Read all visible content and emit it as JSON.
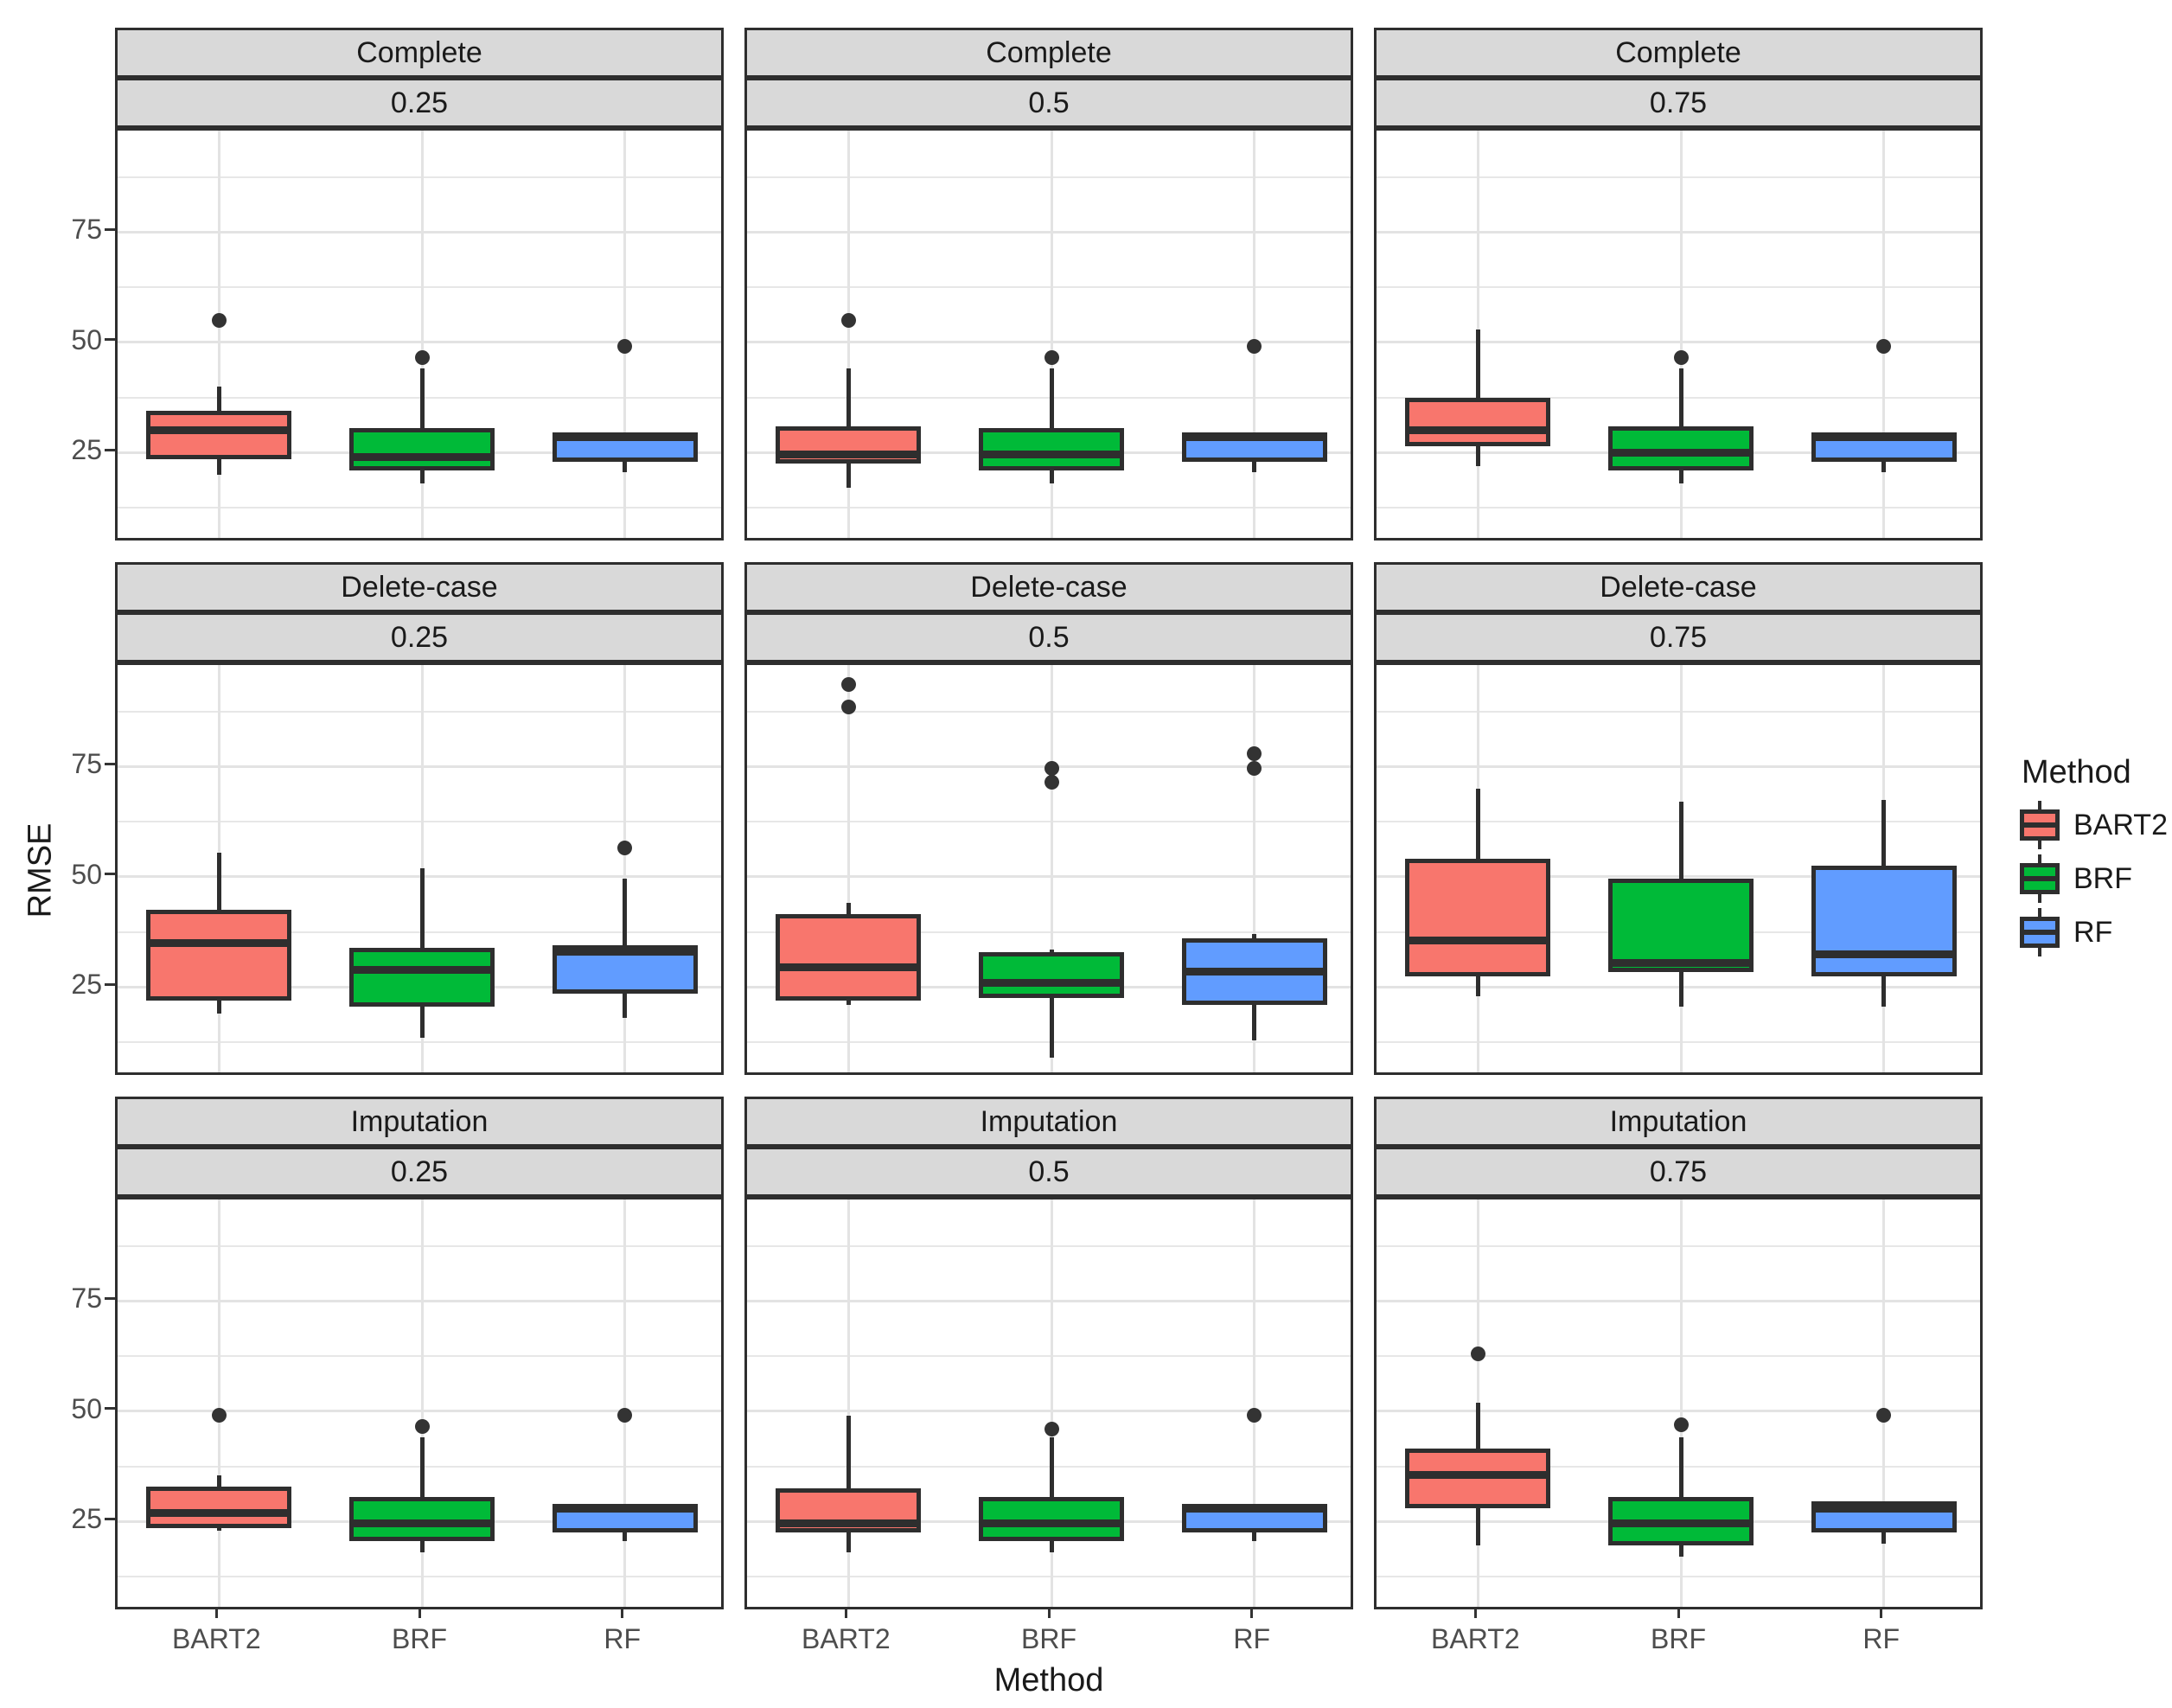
{
  "figure": {
    "y_axis_title": "RMSE",
    "x_axis_title": "Method"
  },
  "legend": {
    "title": "Method",
    "items": [
      {
        "label": "BART2",
        "color": "#F8766D"
      },
      {
        "label": "BRF",
        "color": "#00BA38"
      },
      {
        "label": "RF",
        "color": "#619CFF"
      }
    ]
  },
  "colors": {
    "bart2": "#F8766D",
    "brf": "#00BA38",
    "rf": "#619CFF",
    "box_border": "#2E2E2E",
    "strip_bg": "#D9D9D9",
    "grid": "#E7E7E7",
    "tick_text": "#4D4D4D",
    "text": "#1A1A1A",
    "panel_bg": "#FFFFFF"
  },
  "chart_data": {
    "type": "boxplot",
    "title": "",
    "xlabel": "Method",
    "ylabel": "RMSE",
    "legend_position": "right",
    "grid": "on",
    "facet_rows": [
      "Complete",
      "Delete-case",
      "Imputation"
    ],
    "facet_cols": [
      "0.25",
      "0.5",
      "0.75"
    ],
    "methods": [
      "BART2",
      "BRF",
      "RF"
    ],
    "y_ticks": [
      25,
      50,
      75
    ],
    "y_minor_gridlines": [
      12.5,
      37.5,
      62.5,
      87.5
    ],
    "y_domain": [
      4.5,
      98
    ],
    "panels": [
      {
        "facet_row": "Complete",
        "facet_col": "0.25",
        "boxes": [
          {
            "method": "BART2",
            "whisker_low": 20,
            "q1": 23.5,
            "median": 30,
            "q3": 34.5,
            "whisker_high": 40,
            "outliers": [
              55
            ]
          },
          {
            "method": "BRF",
            "whisker_low": 18,
            "q1": 21,
            "median": 24,
            "q3": 30.5,
            "whisker_high": 44,
            "outliers": [
              46.5
            ]
          },
          {
            "method": "RF",
            "whisker_low": 20.5,
            "q1": 23,
            "median": 28.5,
            "q3": 29.5,
            "whisker_high": 29.5,
            "outliers": [
              49
            ]
          }
        ]
      },
      {
        "facet_row": "Complete",
        "facet_col": "0.5",
        "boxes": [
          {
            "method": "BART2",
            "whisker_low": 17,
            "q1": 22.5,
            "median": 24.5,
            "q3": 31,
            "whisker_high": 44,
            "outliers": [
              55
            ]
          },
          {
            "method": "BRF",
            "whisker_low": 18,
            "q1": 21,
            "median": 24.5,
            "q3": 30.5,
            "whisker_high": 44,
            "outliers": [
              46.5
            ]
          },
          {
            "method": "RF",
            "whisker_low": 20.5,
            "q1": 23,
            "median": 28.5,
            "q3": 29.5,
            "whisker_high": 29.5,
            "outliers": [
              49
            ]
          }
        ]
      },
      {
        "facet_row": "Complete",
        "facet_col": "0.75",
        "boxes": [
          {
            "method": "BART2",
            "whisker_low": 22,
            "q1": 26.5,
            "median": 30,
            "q3": 37.5,
            "whisker_high": 53,
            "outliers": []
          },
          {
            "method": "BRF",
            "whisker_low": 18,
            "q1": 21,
            "median": 25,
            "q3": 31,
            "whisker_high": 44,
            "outliers": [
              46.5
            ]
          },
          {
            "method": "RF",
            "whisker_low": 20.5,
            "q1": 23,
            "median": 28.5,
            "q3": 29.5,
            "whisker_high": 29.5,
            "outliers": [
              49
            ]
          }
        ]
      },
      {
        "facet_row": "Delete-case",
        "facet_col": "0.25",
        "boxes": [
          {
            "method": "BART2",
            "whisker_low": 19,
            "q1": 22,
            "median": 35,
            "q3": 42.5,
            "whisker_high": 55.5,
            "outliers": []
          },
          {
            "method": "BRF",
            "whisker_low": 13.5,
            "q1": 20.5,
            "median": 29,
            "q3": 34,
            "whisker_high": 52,
            "outliers": []
          },
          {
            "method": "RF",
            "whisker_low": 18,
            "q1": 23.5,
            "median": 33,
            "q3": 34.5,
            "whisker_high": 49.5,
            "outliers": [
              56.5
            ]
          }
        ]
      },
      {
        "facet_row": "Delete-case",
        "facet_col": "0.5",
        "boxes": [
          {
            "method": "BART2",
            "whisker_low": 21,
            "q1": 22,
            "median": 29.5,
            "q3": 41.5,
            "whisker_high": 44,
            "outliers": [
              88.5,
              93.5
            ]
          },
          {
            "method": "BRF",
            "whisker_low": 9,
            "q1": 22.5,
            "median": 26,
            "q3": 33,
            "whisker_high": 33.5,
            "outliers": [
              71.5,
              74.5
            ]
          },
          {
            "method": "RF",
            "whisker_low": 13,
            "q1": 21,
            "median": 28.5,
            "q3": 36,
            "whisker_high": 37,
            "outliers": [
              74.5,
              78
            ]
          }
        ]
      },
      {
        "facet_row": "Delete-case",
        "facet_col": "0.75",
        "boxes": [
          {
            "method": "BART2",
            "whisker_low": 23,
            "q1": 27.5,
            "median": 35.5,
            "q3": 54,
            "whisker_high": 70,
            "outliers": []
          },
          {
            "method": "BRF",
            "whisker_low": 20.5,
            "q1": 28.5,
            "median": 30.5,
            "q3": 49.5,
            "whisker_high": 67,
            "outliers": []
          },
          {
            "method": "RF",
            "whisker_low": 20.5,
            "q1": 27.5,
            "median": 32.5,
            "q3": 52.5,
            "whisker_high": 67.5,
            "outliers": []
          }
        ]
      },
      {
        "facet_row": "Imputation",
        "facet_col": "0.25",
        "boxes": [
          {
            "method": "BART2",
            "whisker_low": 23,
            "q1": 23.5,
            "median": 27,
            "q3": 33,
            "whisker_high": 35.5,
            "outliers": [
              49
            ]
          },
          {
            "method": "BRF",
            "whisker_low": 18,
            "q1": 20.5,
            "median": 24.5,
            "q3": 30.5,
            "whisker_high": 44,
            "outliers": [
              46.5
            ]
          },
          {
            "method": "RF",
            "whisker_low": 20.5,
            "q1": 22.5,
            "median": 28,
            "q3": 29,
            "whisker_high": 29,
            "outliers": [
              49
            ]
          }
        ]
      },
      {
        "facet_row": "Imputation",
        "facet_col": "0.5",
        "boxes": [
          {
            "method": "BART2",
            "whisker_low": 18,
            "q1": 22.5,
            "median": 24.5,
            "q3": 32.5,
            "whisker_high": 49,
            "outliers": []
          },
          {
            "method": "BRF",
            "whisker_low": 18,
            "q1": 20.5,
            "median": 24.5,
            "q3": 30.5,
            "whisker_high": 44,
            "outliers": [
              46
            ]
          },
          {
            "method": "RF",
            "whisker_low": 20.5,
            "q1": 22.5,
            "median": 28,
            "q3": 29,
            "whisker_high": 29,
            "outliers": [
              49
            ]
          }
        ]
      },
      {
        "facet_row": "Imputation",
        "facet_col": "0.75",
        "boxes": [
          {
            "method": "BART2",
            "whisker_low": 19.5,
            "q1": 28,
            "median": 35.5,
            "q3": 41.5,
            "whisker_high": 52,
            "outliers": [
              63
            ]
          },
          {
            "method": "BRF",
            "whisker_low": 17,
            "q1": 19.5,
            "median": 24.5,
            "q3": 30.5,
            "whisker_high": 44,
            "outliers": [
              47
            ]
          },
          {
            "method": "RF",
            "whisker_low": 20,
            "q1": 22.5,
            "median": 28,
            "q3": 29.5,
            "whisker_high": 29.5,
            "outliers": [
              49
            ]
          }
        ]
      }
    ]
  }
}
